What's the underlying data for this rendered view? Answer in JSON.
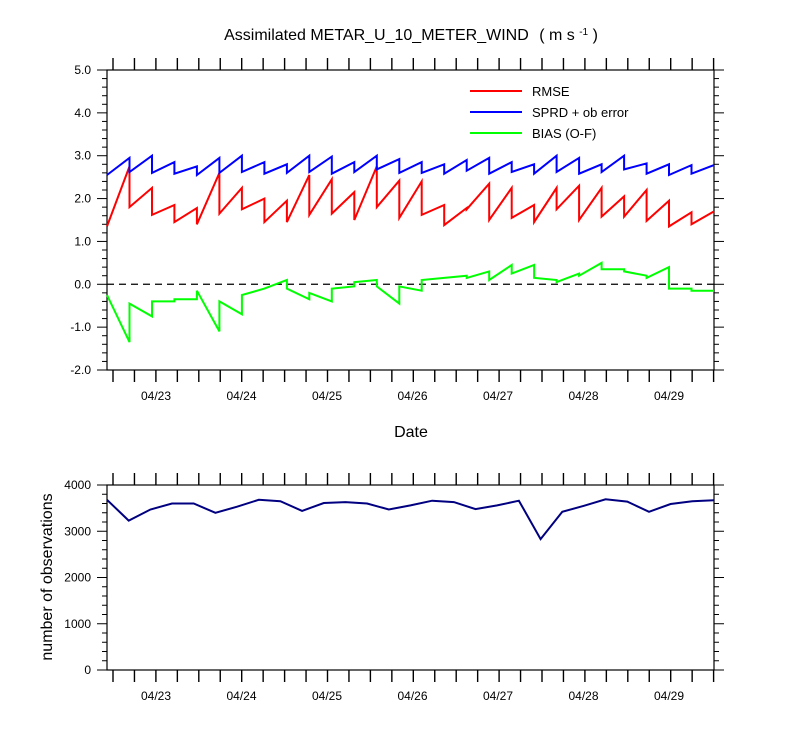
{
  "chart_data": [
    {
      "type": "line",
      "title": "Assimilated METAR_U_10_METER_WIND",
      "title_units": "( m s",
      "title_units_sup": "-1",
      "title_units_close": " )",
      "xlabel": "Date",
      "ylabel": "",
      "ylim": [
        -2.0,
        5.0
      ],
      "yticks": [
        "-2.0",
        "-1.0",
        "0.0",
        "1.0",
        "2.0",
        "3.0",
        "4.0",
        "5.0"
      ],
      "x_tick_labels": [
        "04/23",
        "04/24",
        "04/25",
        "04/26",
        "04/27",
        "04/28",
        "04/29"
      ],
      "zero_line": "dashed",
      "legend_position": "top-right",
      "series": [
        {
          "name": "RMSE",
          "color": "#ff0000",
          "values": [
            [
              1.35,
              2.75
            ],
            [
              1.8,
              2.25
            ],
            [
              1.62,
              1.85
            ],
            [
              1.45,
              1.78
            ],
            [
              1.4,
              2.6
            ],
            [
              1.65,
              2.25
            ],
            [
              1.75,
              2.0
            ],
            [
              1.45,
              1.95
            ],
            [
              1.45,
              2.55
            ],
            [
              1.62,
              2.45
            ],
            [
              1.65,
              2.15
            ],
            [
              1.5,
              2.75
            ],
            [
              1.8,
              2.42
            ],
            [
              1.55,
              2.4
            ],
            [
              1.62,
              1.85
            ],
            [
              1.38,
              1.78
            ],
            [
              1.75,
              2.35
            ],
            [
              1.5,
              2.25
            ],
            [
              1.55,
              1.85
            ],
            [
              1.45,
              2.25
            ],
            [
              1.75,
              2.3
            ],
            [
              1.5,
              2.25
            ],
            [
              1.58,
              2.05
            ],
            [
              1.58,
              2.2
            ],
            [
              1.48,
              1.95
            ],
            [
              1.35,
              1.68
            ],
            [
              1.4,
              1.7
            ]
          ]
        },
        {
          "name": "SPRD + ob error",
          "color": "#0000ff",
          "values": [
            [
              2.55,
              2.95
            ],
            [
              2.62,
              3.0
            ],
            [
              2.6,
              2.85
            ],
            [
              2.58,
              2.75
            ],
            [
              2.55,
              2.95
            ],
            [
              2.6,
              3.0
            ],
            [
              2.62,
              2.85
            ],
            [
              2.58,
              2.8
            ],
            [
              2.6,
              3.0
            ],
            [
              2.62,
              2.98
            ],
            [
              2.58,
              2.85
            ],
            [
              2.62,
              3.0
            ],
            [
              2.68,
              2.92
            ],
            [
              2.6,
              2.85
            ],
            [
              2.6,
              2.8
            ],
            [
              2.58,
              2.9
            ],
            [
              2.65,
              2.95
            ],
            [
              2.58,
              2.85
            ],
            [
              2.62,
              2.8
            ],
            [
              2.58,
              3.0
            ],
            [
              2.62,
              2.95
            ],
            [
              2.58,
              2.8
            ],
            [
              2.62,
              3.0
            ],
            [
              2.68,
              2.82
            ],
            [
              2.58,
              2.8
            ],
            [
              2.55,
              2.78
            ],
            [
              2.58,
              2.78
            ]
          ]
        },
        {
          "name": "BIAS (O-F)",
          "color": "#00ff00",
          "values": [
            [
              -0.25,
              -1.35
            ],
            [
              -0.45,
              -0.75
            ],
            [
              -0.4,
              -0.4
            ],
            [
              -0.35,
              -0.35
            ],
            [
              -0.15,
              -1.1
            ],
            [
              -0.4,
              -0.7
            ],
            [
              -0.25,
              -0.1
            ],
            [
              -0.1,
              0.1
            ],
            [
              -0.1,
              -0.35
            ],
            [
              -0.2,
              -0.4
            ],
            [
              -0.1,
              -0.05
            ],
            [
              0.05,
              0.1
            ],
            [
              -0.05,
              -0.45
            ],
            [
              -0.05,
              -0.15
            ],
            [
              0.1,
              0.15
            ],
            [
              0.15,
              0.2
            ],
            [
              0.15,
              0.3
            ],
            [
              0.1,
              0.45
            ],
            [
              0.25,
              0.45
            ],
            [
              0.15,
              0.1
            ],
            [
              0.05,
              0.25
            ],
            [
              0.2,
              0.5
            ],
            [
              0.35,
              0.35
            ],
            [
              0.3,
              0.2
            ],
            [
              0.15,
              0.4
            ],
            [
              -0.1,
              -0.1
            ],
            [
              -0.15,
              -0.15
            ]
          ]
        }
      ]
    },
    {
      "type": "line",
      "title": "",
      "xlabel": "",
      "ylabel": "number of observations",
      "ylim": [
        0,
        4000
      ],
      "yticks": [
        "0",
        "1000",
        "2000",
        "3000",
        "4000"
      ],
      "x_tick_labels": [
        "04/23",
        "04/24",
        "04/25",
        "04/26",
        "04/27",
        "04/28",
        "04/29"
      ],
      "series": [
        {
          "color": "#000080",
          "values": [
            3680,
            3230,
            3470,
            3600,
            3600,
            3400,
            3530,
            3680,
            3650,
            3440,
            3610,
            3630,
            3600,
            3470,
            3560,
            3660,
            3630,
            3480,
            3560,
            3660,
            2830,
            3420,
            3550,
            3690,
            3640,
            3420,
            3590,
            3650,
            3670
          ]
        }
      ]
    }
  ]
}
